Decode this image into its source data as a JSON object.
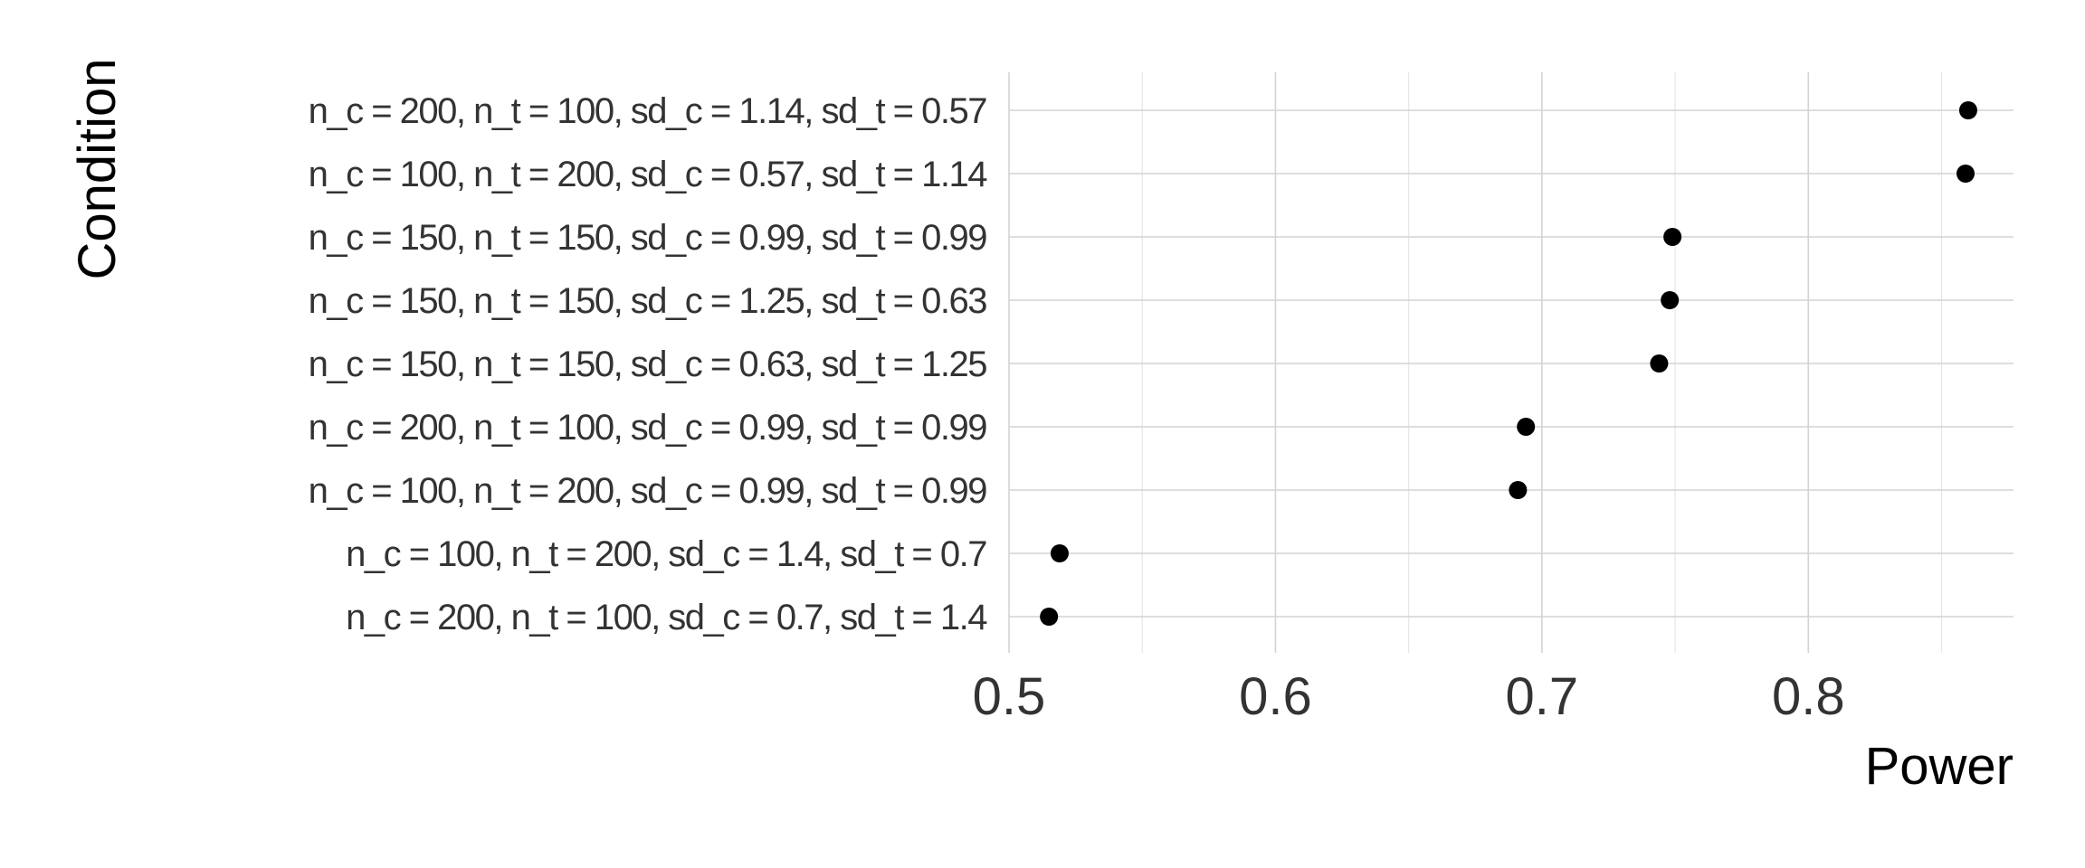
{
  "chart_data": {
    "type": "scatter",
    "xlabel": "Power",
    "ylabel": "Condition",
    "xlim": [
      0.5,
      0.877
    ],
    "x_ticks": [
      "0.5",
      "0.6",
      "0.7",
      "0.8"
    ],
    "grid": true,
    "categories": [
      "n_c = 200, n_t = 100, sd_c = 0.7, sd_t = 1.4",
      "n_c = 100, n_t = 200, sd_c = 1.4, sd_t = 0.7",
      "n_c = 100, n_t = 200, sd_c = 0.99, sd_t = 0.99",
      "n_c = 200, n_t = 100, sd_c = 0.99, sd_t = 0.99",
      "n_c = 150, n_t = 150, sd_c = 0.63, sd_t = 1.25",
      "n_c = 150, n_t = 150, sd_c = 1.25, sd_t = 0.63",
      "n_c = 150, n_t = 150, sd_c = 0.99, sd_t = 0.99",
      "n_c = 100, n_t = 200, sd_c = 0.57, sd_t = 1.14",
      "n_c = 200, n_t = 100, sd_c = 1.14, sd_t = 0.57"
    ],
    "values": [
      0.515,
      0.519,
      0.691,
      0.694,
      0.744,
      0.748,
      0.749,
      0.859,
      0.86
    ]
  }
}
